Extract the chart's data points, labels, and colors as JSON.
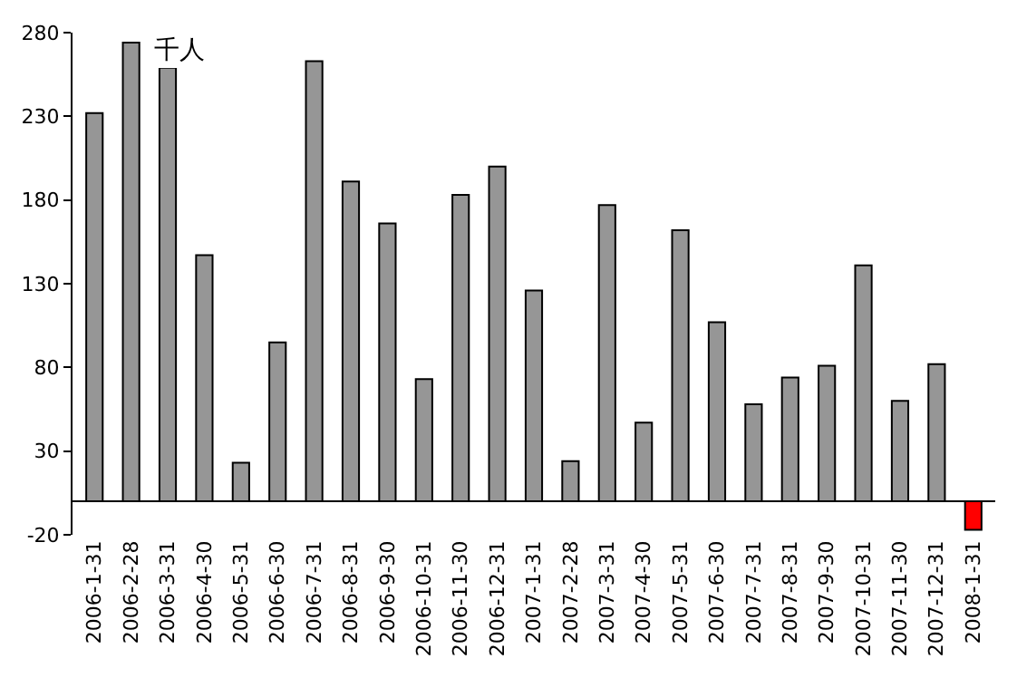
{
  "chart_data": {
    "type": "bar",
    "ylabel": "千人",
    "categories": [
      "2006-1-31",
      "2006-2-28",
      "2006-3-31",
      "2006-4-30",
      "2006-5-31",
      "2006-6-30",
      "2006-7-31",
      "2006-8-31",
      "2006-9-30",
      "2006-10-31",
      "2006-11-30",
      "2006-12-31",
      "2007-1-31",
      "2007-2-28",
      "2007-3-31",
      "2007-4-30",
      "2007-5-31",
      "2007-6-30",
      "2007-7-31",
      "2007-8-31",
      "2007-9-30",
      "2007-10-31",
      "2007-11-30",
      "2007-12-31",
      "2008-1-31"
    ],
    "values": [
      232,
      274,
      259,
      147,
      23,
      95,
      263,
      191,
      166,
      73,
      183,
      200,
      126,
      24,
      177,
      47,
      162,
      107,
      58,
      74,
      81,
      141,
      60,
      82,
      -17
    ],
    "colors": [
      "#969696",
      "#969696",
      "#969696",
      "#969696",
      "#969696",
      "#969696",
      "#969696",
      "#969696",
      "#969696",
      "#969696",
      "#969696",
      "#969696",
      "#969696",
      "#969696",
      "#969696",
      "#969696",
      "#969696",
      "#969696",
      "#969696",
      "#969696",
      "#969696",
      "#969696",
      "#969696",
      "#969696",
      "#ff0000"
    ],
    "ylim": [
      -20,
      280
    ],
    "yticks": [
      -20,
      30,
      80,
      130,
      180,
      230,
      280
    ]
  }
}
